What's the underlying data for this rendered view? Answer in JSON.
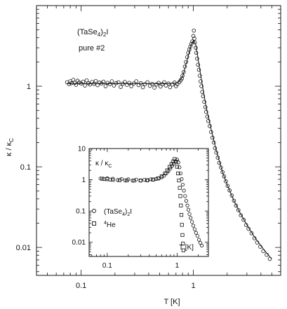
{
  "chart_data": [
    {
      "type": "scatter",
      "title": "",
      "xlabel": "T [K]",
      "ylabel": "κ / κ",
      "ylabel_sub": "C",
      "x_scale": "log",
      "y_scale": "log",
      "xlim": [
        0.04,
        6
      ],
      "ylim": [
        0.0045,
        10
      ],
      "x_ticks": [
        0.1,
        1
      ],
      "x_tick_labels": [
        "0.1",
        "1"
      ],
      "y_ticks": [
        0.01,
        0.1,
        1
      ],
      "y_tick_labels": [
        "0.01",
        "0.1",
        "1"
      ],
      "grid": false,
      "annotations": {
        "compound_main": "(TaSe",
        "compound_sub4": "4",
        "compound_mid": ")",
        "compound_sub2": "2",
        "compound_end": "I",
        "sample": "pure #2"
      },
      "series": [
        {
          "marker": "circle",
          "points": [
            [
              0.075,
              1.12
            ],
            [
              0.078,
              1.06
            ],
            [
              0.08,
              1.15
            ],
            [
              0.082,
              1.09
            ],
            [
              0.085,
              1.2
            ],
            [
              0.088,
              1.1
            ],
            [
              0.09,
              1.04
            ],
            [
              0.093,
              1.17
            ],
            [
              0.096,
              1.11
            ],
            [
              0.1,
              1.08
            ],
            [
              0.104,
              1.14
            ],
            [
              0.108,
              1.02
            ],
            [
              0.112,
              1.18
            ],
            [
              0.116,
              1.09
            ],
            [
              0.12,
              1.05
            ],
            [
              0.125,
              1.13
            ],
            [
              0.13,
              1.07
            ],
            [
              0.135,
              1.16
            ],
            [
              0.14,
              1.03
            ],
            [
              0.146,
              1.11
            ],
            [
              0.152,
              1.08
            ],
            [
              0.158,
              1.14
            ],
            [
              0.165,
              1.0
            ],
            [
              0.172,
              1.1
            ],
            [
              0.18,
              1.06
            ],
            [
              0.188,
              1.15
            ],
            [
              0.196,
              1.02
            ],
            [
              0.205,
              1.09
            ],
            [
              0.215,
              1.12
            ],
            [
              0.225,
              0.98
            ],
            [
              0.235,
              1.07
            ],
            [
              0.245,
              1.13
            ],
            [
              0.256,
              1.04
            ],
            [
              0.268,
              1.1
            ],
            [
              0.28,
              1.0
            ],
            [
              0.295,
              1.08
            ],
            [
              0.31,
              1.15
            ],
            [
              0.325,
              1.03
            ],
            [
              0.34,
              1.09
            ],
            [
              0.355,
              0.97
            ],
            [
              0.37,
              1.06
            ],
            [
              0.39,
              1.12
            ],
            [
              0.41,
              1.01
            ],
            [
              0.43,
              1.07
            ],
            [
              0.45,
              0.96
            ],
            [
              0.47,
              1.05
            ],
            [
              0.49,
              1.1
            ],
            [
              0.51,
              0.99
            ],
            [
              0.53,
              1.06
            ],
            [
              0.55,
              1.12
            ],
            [
              0.57,
              1.02
            ],
            [
              0.6,
              1.08
            ],
            [
              0.62,
              0.97
            ],
            [
              0.65,
              1.05
            ],
            [
              0.68,
              1.11
            ],
            [
              0.7,
              1.0
            ],
            [
              0.72,
              1.06
            ],
            [
              0.75,
              1.12
            ],
            [
              0.77,
              1.18
            ],
            [
              0.79,
              1.25
            ],
            [
              0.8,
              1.35
            ],
            [
              0.82,
              1.5
            ],
            [
              0.84,
              1.75
            ],
            [
              0.86,
              2.0
            ],
            [
              0.88,
              2.3
            ],
            [
              0.9,
              2.6
            ],
            [
              0.92,
              2.85
            ],
            [
              0.94,
              3.1
            ],
            [
              0.96,
              3.35
            ],
            [
              0.98,
              3.6
            ],
            [
              1.0,
              4.2
            ],
            [
              1.01,
              4.9
            ],
            [
              1.02,
              3.9
            ],
            [
              1.03,
              3.5
            ],
            [
              1.05,
              3.0
            ],
            [
              1.06,
              2.6
            ],
            [
              1.08,
              2.2
            ],
            [
              1.1,
              1.85
            ],
            [
              1.12,
              1.6
            ],
            [
              1.14,
              1.35
            ],
            [
              1.16,
              1.15
            ],
            [
              1.18,
              1.0
            ],
            [
              1.2,
              0.85
            ],
            [
              1.22,
              0.75
            ],
            [
              1.25,
              0.64
            ],
            [
              1.28,
              0.55
            ],
            [
              1.3,
              0.48
            ],
            [
              1.33,
              0.42
            ],
            [
              1.36,
              0.37
            ],
            [
              1.4,
              0.32
            ],
            [
              1.44,
              0.27
            ],
            [
              1.48,
              0.23
            ],
            [
              1.52,
              0.2
            ],
            [
              1.56,
              0.17
            ],
            [
              1.6,
              0.15
            ],
            [
              1.65,
              0.13
            ],
            [
              1.7,
              0.112
            ],
            [
              1.76,
              0.098
            ],
            [
              1.82,
              0.086
            ],
            [
              1.88,
              0.076
            ],
            [
              1.95,
              0.066
            ],
            [
              2.02,
              0.058
            ],
            [
              2.1,
              0.051
            ],
            [
              2.2,
              0.044
            ],
            [
              2.3,
              0.038
            ],
            [
              2.4,
              0.033
            ],
            [
              2.52,
              0.029
            ],
            [
              2.65,
              0.025
            ],
            [
              2.8,
              0.022
            ],
            [
              2.95,
              0.019
            ],
            [
              3.1,
              0.017
            ],
            [
              3.3,
              0.015
            ],
            [
              3.5,
              0.013
            ],
            [
              3.7,
              0.0115
            ],
            [
              3.95,
              0.0102
            ],
            [
              4.2,
              0.009
            ],
            [
              4.5,
              0.0081
            ],
            [
              4.8,
              0.0072
            ]
          ]
        },
        {
          "marker": "line",
          "points": [
            [
              0.075,
              1.08
            ],
            [
              0.2,
              1.08
            ],
            [
              0.4,
              1.08
            ],
            [
              0.6,
              1.08
            ],
            [
              0.72,
              1.1
            ],
            [
              0.8,
              1.3
            ],
            [
              0.88,
              2.1
            ],
            [
              0.95,
              3.2
            ],
            [
              1.0,
              3.7
            ],
            [
              1.05,
              3.3
            ],
            [
              1.1,
              2.2
            ],
            [
              1.2,
              1.05
            ],
            [
              1.3,
              0.55
            ],
            [
              1.45,
              0.28
            ],
            [
              1.6,
              0.16
            ],
            [
              1.8,
              0.09
            ],
            [
              2.0,
              0.06
            ],
            [
              2.3,
              0.038
            ],
            [
              2.6,
              0.027
            ],
            [
              3.0,
              0.019
            ],
            [
              3.5,
              0.0135
            ],
            [
              4.0,
              0.0105
            ],
            [
              4.5,
              0.0085
            ],
            [
              5.0,
              0.0072
            ]
          ]
        }
      ]
    },
    {
      "type": "scatter",
      "title": "",
      "xlabel": "T [K]",
      "ylabel": "κ / κ",
      "ylabel_sub": "C",
      "x_scale": "log",
      "y_scale": "log",
      "xlim": [
        0.055,
        2.8
      ],
      "ylim": [
        0.0035,
        10
      ],
      "x_ticks": [
        0.1,
        1
      ],
      "x_tick_labels": [
        "0.1",
        "1"
      ],
      "y_ticks": [
        0.01,
        0.1,
        1,
        10
      ],
      "y_tick_labels": [
        "0.01",
        "0.1",
        "1",
        "10"
      ],
      "grid": false,
      "legend_position": "left-bottom",
      "series": [
        {
          "name_parts": [
            "(TaSe",
            "4",
            ")",
            "2",
            "I"
          ],
          "marker": "circle",
          "points": [
            [
              0.08,
              1.1
            ],
            [
              0.09,
              1.05
            ],
            [
              0.1,
              1.12
            ],
            [
              0.11,
              1.02
            ],
            [
              0.12,
              1.08
            ],
            [
              0.14,
              0.98
            ],
            [
              0.16,
              1.06
            ],
            [
              0.18,
              0.96
            ],
            [
              0.2,
              1.04
            ],
            [
              0.23,
              0.95
            ],
            [
              0.26,
              1.02
            ],
            [
              0.3,
              0.94
            ],
            [
              0.34,
              1.0
            ],
            [
              0.38,
              0.95
            ],
            [
              0.42,
              1.04
            ],
            [
              0.46,
              1.0
            ],
            [
              0.5,
              1.06
            ],
            [
              0.55,
              1.12
            ],
            [
              0.6,
              1.2
            ],
            [
              0.65,
              1.35
            ],
            [
              0.7,
              1.6
            ],
            [
              0.75,
              1.9
            ],
            [
              0.8,
              2.3
            ],
            [
              0.85,
              2.8
            ],
            [
              0.9,
              3.3
            ],
            [
              0.95,
              3.9
            ],
            [
              1.0,
              4.4
            ],
            [
              1.04,
              3.6
            ],
            [
              1.08,
              2.5
            ],
            [
              1.12,
              1.6
            ],
            [
              1.16,
              1.05
            ],
            [
              1.2,
              0.7
            ],
            [
              1.25,
              0.45
            ],
            [
              1.3,
              0.3
            ],
            [
              1.35,
              0.21
            ],
            [
              1.4,
              0.15
            ],
            [
              1.45,
              0.11
            ],
            [
              1.5,
              0.08
            ],
            [
              1.56,
              0.06
            ],
            [
              1.63,
              0.045
            ],
            [
              1.7,
              0.034
            ],
            [
              1.78,
              0.026
            ],
            [
              1.86,
              0.02
            ],
            [
              1.95,
              0.016
            ],
            [
              2.05,
              0.012
            ],
            [
              2.15,
              0.0095
            ],
            [
              2.25,
              0.0078
            ]
          ]
        },
        {
          "name_parts": [
            "4",
            "He"
          ],
          "marker": "square",
          "points": [
            [
              0.085,
              1.08
            ],
            [
              0.1,
              1.04
            ],
            [
              0.12,
              1.0
            ],
            [
              0.15,
              0.97
            ],
            [
              0.19,
              0.95
            ],
            [
              0.24,
              0.94
            ],
            [
              0.3,
              0.95
            ],
            [
              0.37,
              0.97
            ],
            [
              0.45,
              1.02
            ],
            [
              0.53,
              1.1
            ],
            [
              0.6,
              1.3
            ],
            [
              0.67,
              1.6
            ],
            [
              0.72,
              2.0
            ],
            [
              0.78,
              2.6
            ],
            [
              0.83,
              3.2
            ],
            [
              0.88,
              3.9
            ],
            [
              0.92,
              4.6
            ],
            [
              0.96,
              3.8
            ],
            [
              1.0,
              2.6
            ],
            [
              1.03,
              1.6
            ],
            [
              1.06,
              0.95
            ],
            [
              1.09,
              0.55
            ],
            [
              1.11,
              0.3
            ],
            [
              1.13,
              0.15
            ],
            [
              1.15,
              0.075
            ],
            [
              1.17,
              0.036
            ],
            [
              1.19,
              0.017
            ],
            [
              1.21,
              0.009
            ],
            [
              1.23,
              0.0055
            ]
          ]
        }
      ]
    }
  ]
}
